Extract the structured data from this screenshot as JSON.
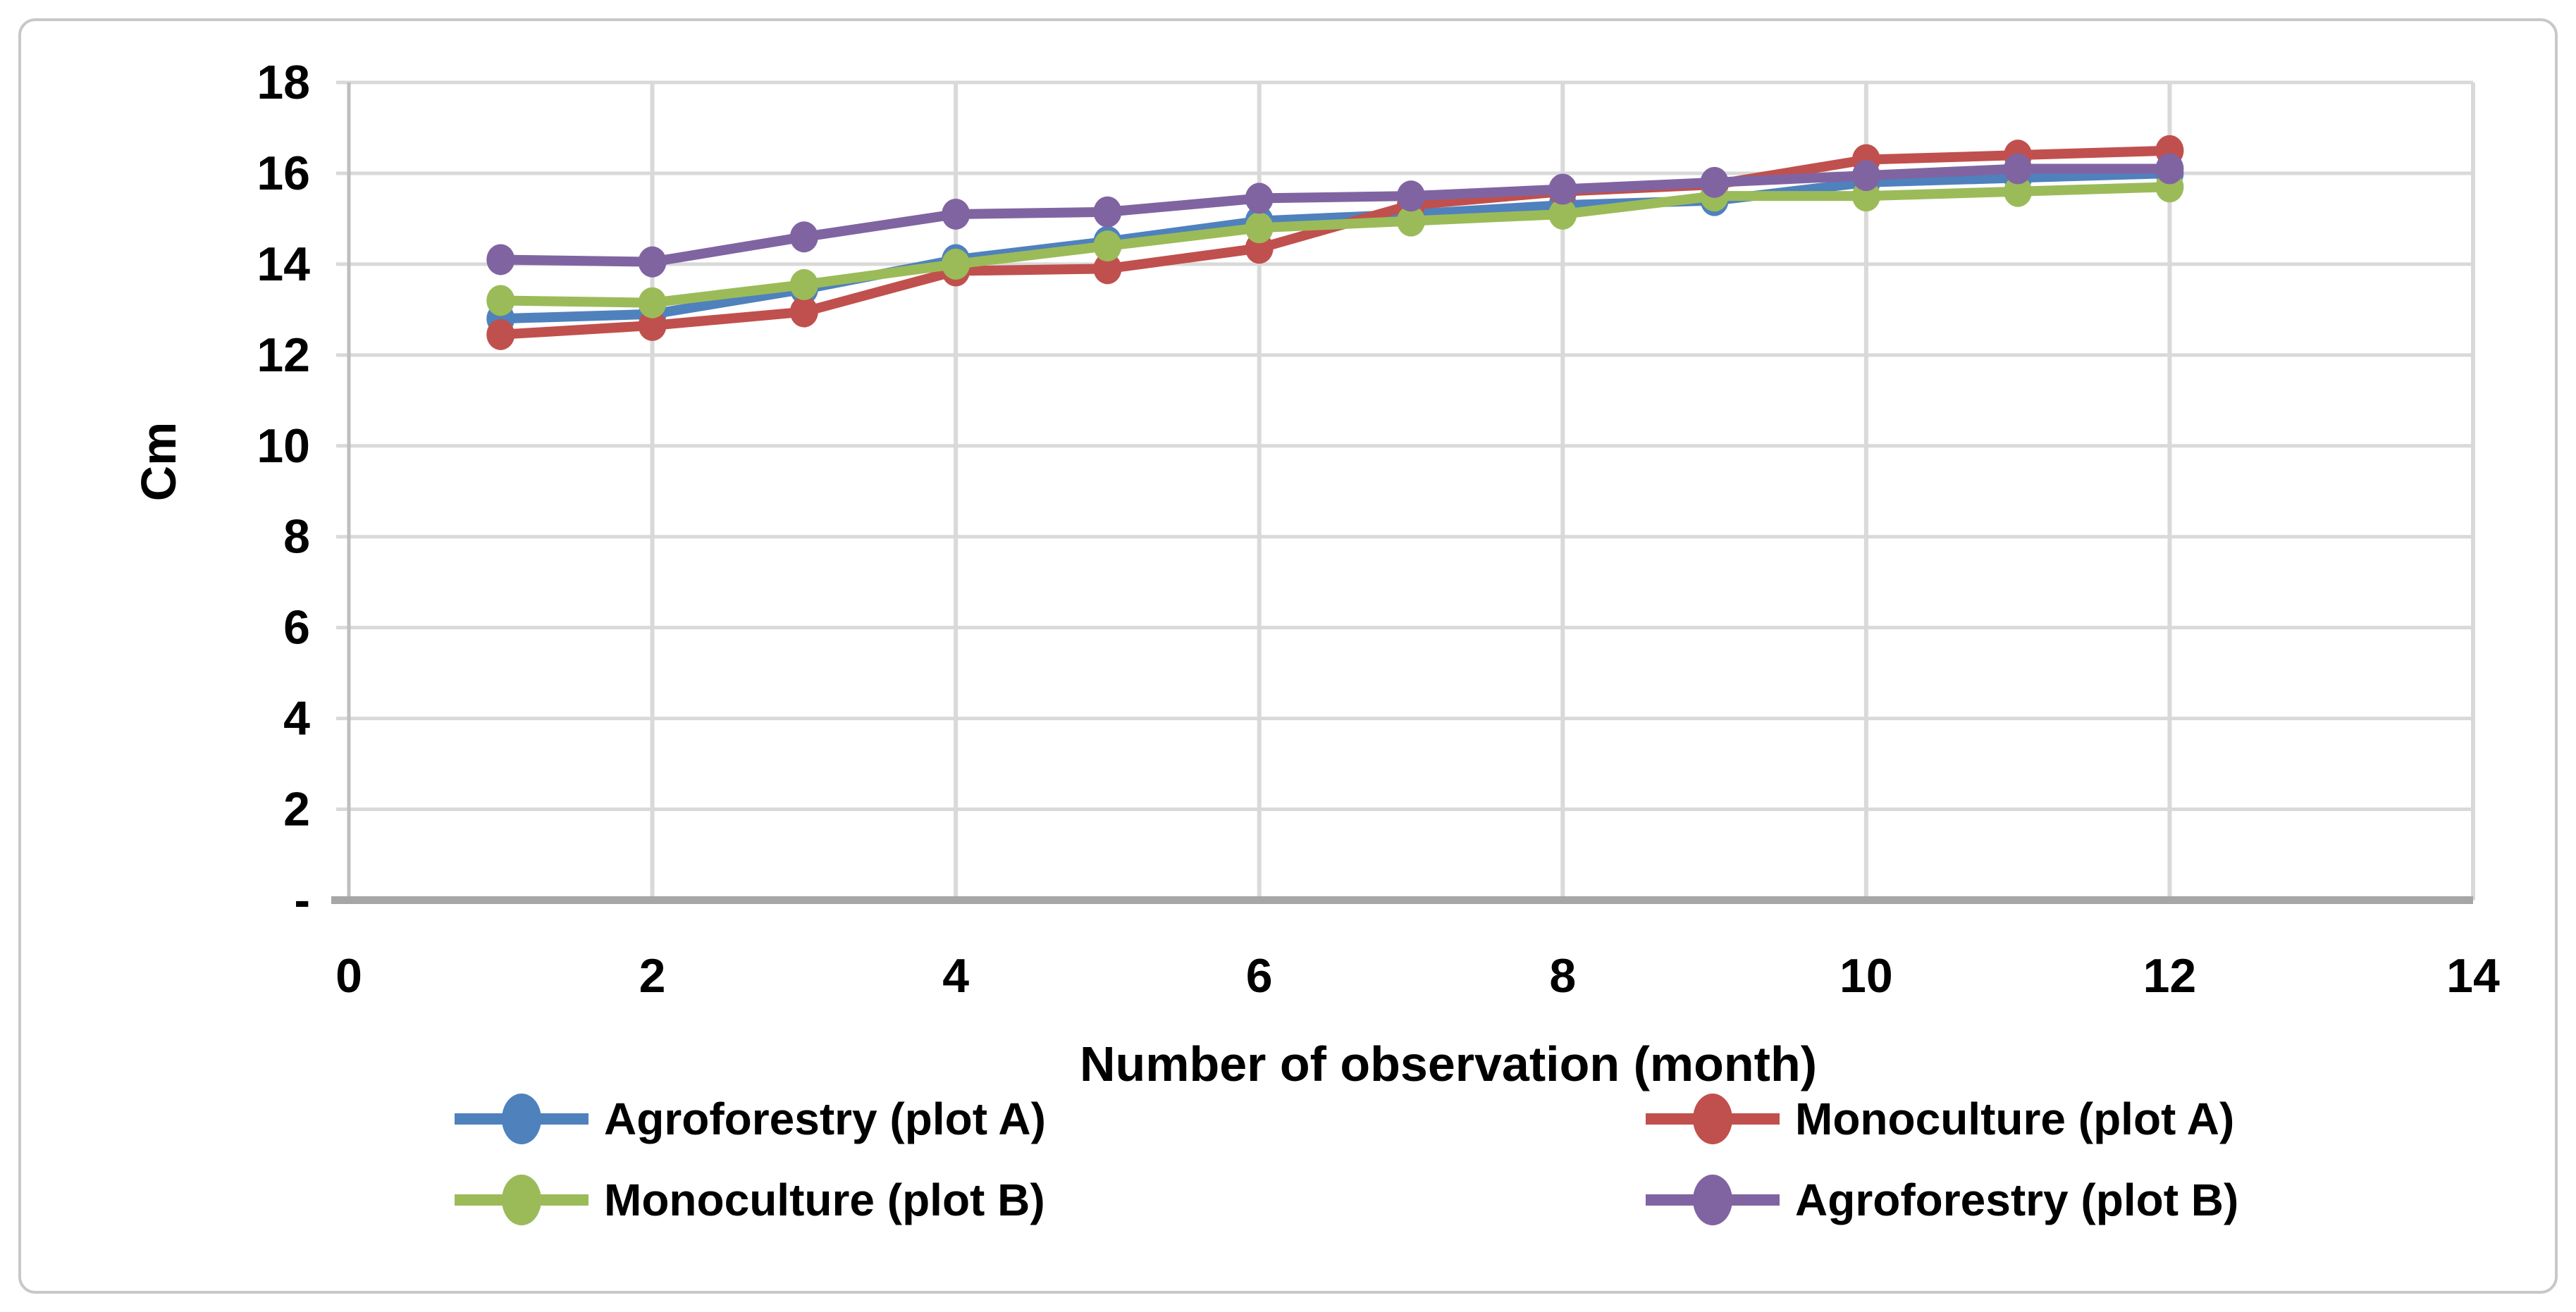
{
  "figure": {
    "background": "#ffffff",
    "border_color": "#c8c8c8"
  },
  "axes_style": {
    "gridline_color": "#d9d9d9",
    "y_axis_line_color": "#bfbfbf",
    "x_axis_line_color": "#a6a6a6",
    "tick_label_color": "#000000"
  },
  "chart_data": {
    "type": "line",
    "title": "",
    "xlabel": "Number of observation (month)",
    "ylabel": "Cm",
    "xlim": [
      0,
      14
    ],
    "ylim": [
      0,
      18
    ],
    "grid": true,
    "x_ticks": [
      {
        "v": 0,
        "label": "0"
      },
      {
        "v": 2,
        "label": "2"
      },
      {
        "v": 4,
        "label": "4"
      },
      {
        "v": 6,
        "label": "6"
      },
      {
        "v": 8,
        "label": "8"
      },
      {
        "v": 10,
        "label": "10"
      },
      {
        "v": 12,
        "label": "12"
      },
      {
        "v": 14,
        "label": "14"
      }
    ],
    "y_ticks": [
      {
        "v": 18,
        "label": "18"
      },
      {
        "v": 16,
        "label": "16"
      },
      {
        "v": 14,
        "label": "14"
      },
      {
        "v": 12,
        "label": "12"
      },
      {
        "v": 10,
        "label": "10"
      },
      {
        "v": 8,
        "label": "8"
      },
      {
        "v": 6,
        "label": "6"
      },
      {
        "v": 4,
        "label": "4"
      },
      {
        "v": 2,
        "label": "2"
      },
      {
        "v": 0,
        "label": "-"
      }
    ],
    "x": [
      1,
      2,
      3,
      4,
      5,
      6,
      7,
      8,
      9,
      10,
      11,
      12
    ],
    "series": [
      {
        "name": "Agroforestry (plot A)",
        "color": "#4F81BD",
        "values": [
          12.8,
          12.9,
          13.45,
          14.1,
          14.5,
          14.95,
          15.1,
          15.3,
          15.4,
          15.8,
          15.9,
          16.0
        ]
      },
      {
        "name": "Monoculture (plot A)",
        "color": "#C0504D",
        "values": [
          12.45,
          12.65,
          12.95,
          13.85,
          13.9,
          14.35,
          15.3,
          15.6,
          15.75,
          16.3,
          16.4,
          16.5
        ]
      },
      {
        "name": "Monoculture (plot B)",
        "color": "#9BBB59",
        "values": [
          13.2,
          13.15,
          13.55,
          14.0,
          14.4,
          14.8,
          14.95,
          15.1,
          15.5,
          15.5,
          15.6,
          15.7
        ]
      },
      {
        "name": "Agroforestry (plot B)",
        "color": "#8064A2",
        "values": [
          14.1,
          14.05,
          14.6,
          15.1,
          15.15,
          15.45,
          15.5,
          15.65,
          15.8,
          15.95,
          16.1,
          16.1
        ]
      }
    ],
    "legend_position": "bottom",
    "legend": [
      {
        "series_index": 0,
        "col": 0,
        "row": 0
      },
      {
        "series_index": 1,
        "col": 1,
        "row": 0
      },
      {
        "series_index": 2,
        "col": 0,
        "row": 1
      },
      {
        "series_index": 3,
        "col": 1,
        "row": 1
      }
    ]
  }
}
